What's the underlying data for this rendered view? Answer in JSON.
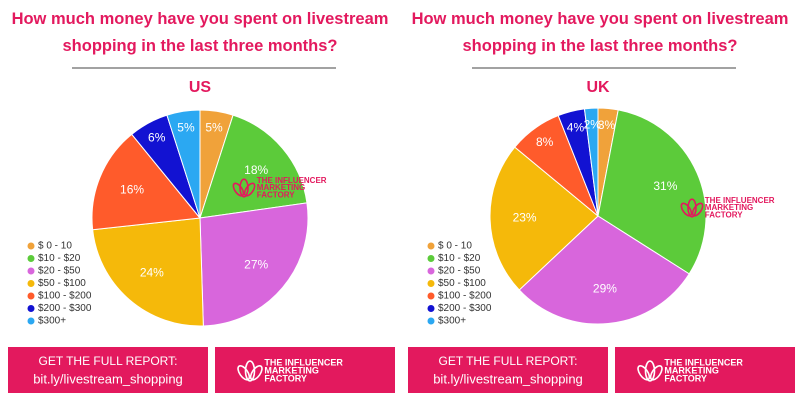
{
  "chart_data": [
    {
      "type": "pie",
      "title": "How much money have you spent on livestream shopping in the last three months?",
      "subtitle": "US",
      "categories": [
        "$ 0 - 10",
        "$10 - $20",
        "$20 - $50",
        "$50 - $100",
        "$100 - $200",
        "$200 - $300",
        "$300+"
      ],
      "values": [
        5,
        18,
        27,
        24,
        16,
        6,
        5
      ],
      "value_labels": [
        "5%",
        "18%",
        "27%",
        "24%",
        "16%",
        "6%",
        "5%"
      ],
      "colors": [
        "#f0a23a",
        "#5ccb3a",
        "#d866dc",
        "#f5b90a",
        "#ff5b2b",
        "#1212d2",
        "#2ba8f2"
      ]
    },
    {
      "type": "pie",
      "title": "How much money have you spent on livestream shopping in the last three months?",
      "subtitle": "UK",
      "categories": [
        "$ 0 - 10",
        "$10 - $20",
        "$20 - $50",
        "$50 - $100",
        "$100 - $200",
        "$200 - $300",
        "$300+"
      ],
      "values": [
        3,
        31,
        29,
        23,
        8,
        4,
        2
      ],
      "value_labels": [
        "3%",
        "31%",
        "29%",
        "23%",
        "8%",
        "4%",
        "2%"
      ],
      "colors": [
        "#f0a23a",
        "#5ccb3a",
        "#d866dc",
        "#f5b90a",
        "#ff5b2b",
        "#1212d2",
        "#2ba8f2"
      ]
    }
  ],
  "footer": {
    "cta": "GET THE FULL REPORT:",
    "link": "bit.ly/livestream_shopping"
  },
  "logo": [
    "THE INFLUENCER",
    "MARKETING",
    "FACTORY"
  ]
}
